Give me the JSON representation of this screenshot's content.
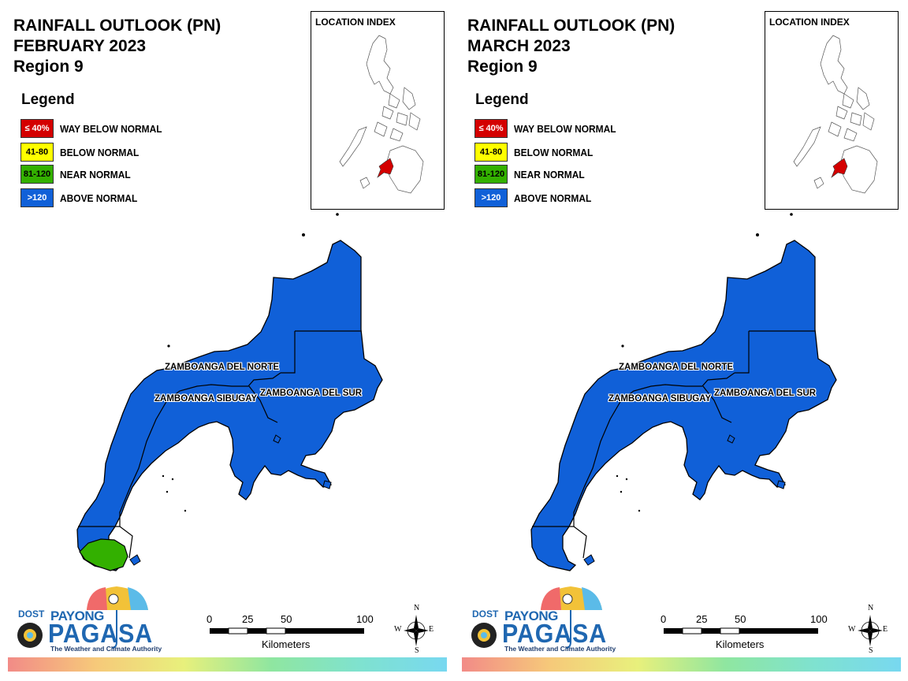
{
  "panels": [
    {
      "title_lines": [
        "RAINFALL OUTLOOK (PN)",
        "FEBRUARY 2023",
        "Region 9"
      ],
      "legend_title": "Legend",
      "legend": [
        {
          "swatch": "≤ 40%",
          "label": "WAY BELOW NORMAL",
          "color": "#d40000",
          "text_color": "#ffffff"
        },
        {
          "swatch": "41-80",
          "label": "BELOW NORMAL",
          "color": "#ffff00",
          "text_color": "#000000"
        },
        {
          "swatch": "81-120",
          "label": "NEAR NORMAL",
          "color": "#33b000",
          "text_color": "#000000"
        },
        {
          "swatch": ">120",
          "label": "ABOVE NORMAL",
          "color": "#1060d8",
          "text_color": "#ffffff"
        }
      ],
      "index_title": "LOCATION INDEX",
      "provinces": [
        "ZAMBOANGA DEL NORTE",
        "ZAMBOANGA SIBUGAY",
        "ZAMBOANGA DEL SUR"
      ],
      "near_normal_area": true,
      "scale": {
        "ticks": [
          "0",
          "25",
          "50",
          "100"
        ],
        "units": "Kilometers"
      },
      "compass": {
        "n": "N",
        "s": "S",
        "e": "E",
        "w": "W"
      },
      "logo": {
        "agency": "DOST",
        "brand_top": "PAYONG",
        "brand_main": "PAGASA",
        "tagline": "The Weather and Climate Authority"
      }
    },
    {
      "title_lines": [
        "RAINFALL OUTLOOK (PN)",
        "MARCH 2023",
        "Region 9"
      ],
      "legend_title": "Legend",
      "legend": [
        {
          "swatch": "≤ 40%",
          "label": "WAY BELOW NORMAL",
          "color": "#d40000",
          "text_color": "#ffffff"
        },
        {
          "swatch": "41-80",
          "label": "BELOW NORMAL",
          "color": "#ffff00",
          "text_color": "#000000"
        },
        {
          "swatch": "81-120",
          "label": "NEAR NORMAL",
          "color": "#33b000",
          "text_color": "#000000"
        },
        {
          "swatch": ">120",
          "label": "ABOVE NORMAL",
          "color": "#1060d8",
          "text_color": "#ffffff"
        }
      ],
      "index_title": "LOCATION INDEX",
      "provinces": [
        "ZAMBOANGA DEL NORTE",
        "ZAMBOANGA SIBUGAY",
        "ZAMBOANGA DEL SUR"
      ],
      "near_normal_area": false,
      "scale": {
        "ticks": [
          "0",
          "25",
          "50",
          "100"
        ],
        "units": "Kilometers"
      },
      "compass": {
        "n": "N",
        "s": "S",
        "e": "E",
        "w": "W"
      },
      "logo": {
        "agency": "DOST",
        "brand_top": "PAYONG",
        "brand_main": "PAGASA",
        "tagline": "The Weather and Climate Authority"
      }
    }
  ],
  "colors": {
    "above_normal": "#1060d8",
    "near_normal": "#33b000",
    "region_highlight": "#d40000",
    "outline": "#000000"
  }
}
